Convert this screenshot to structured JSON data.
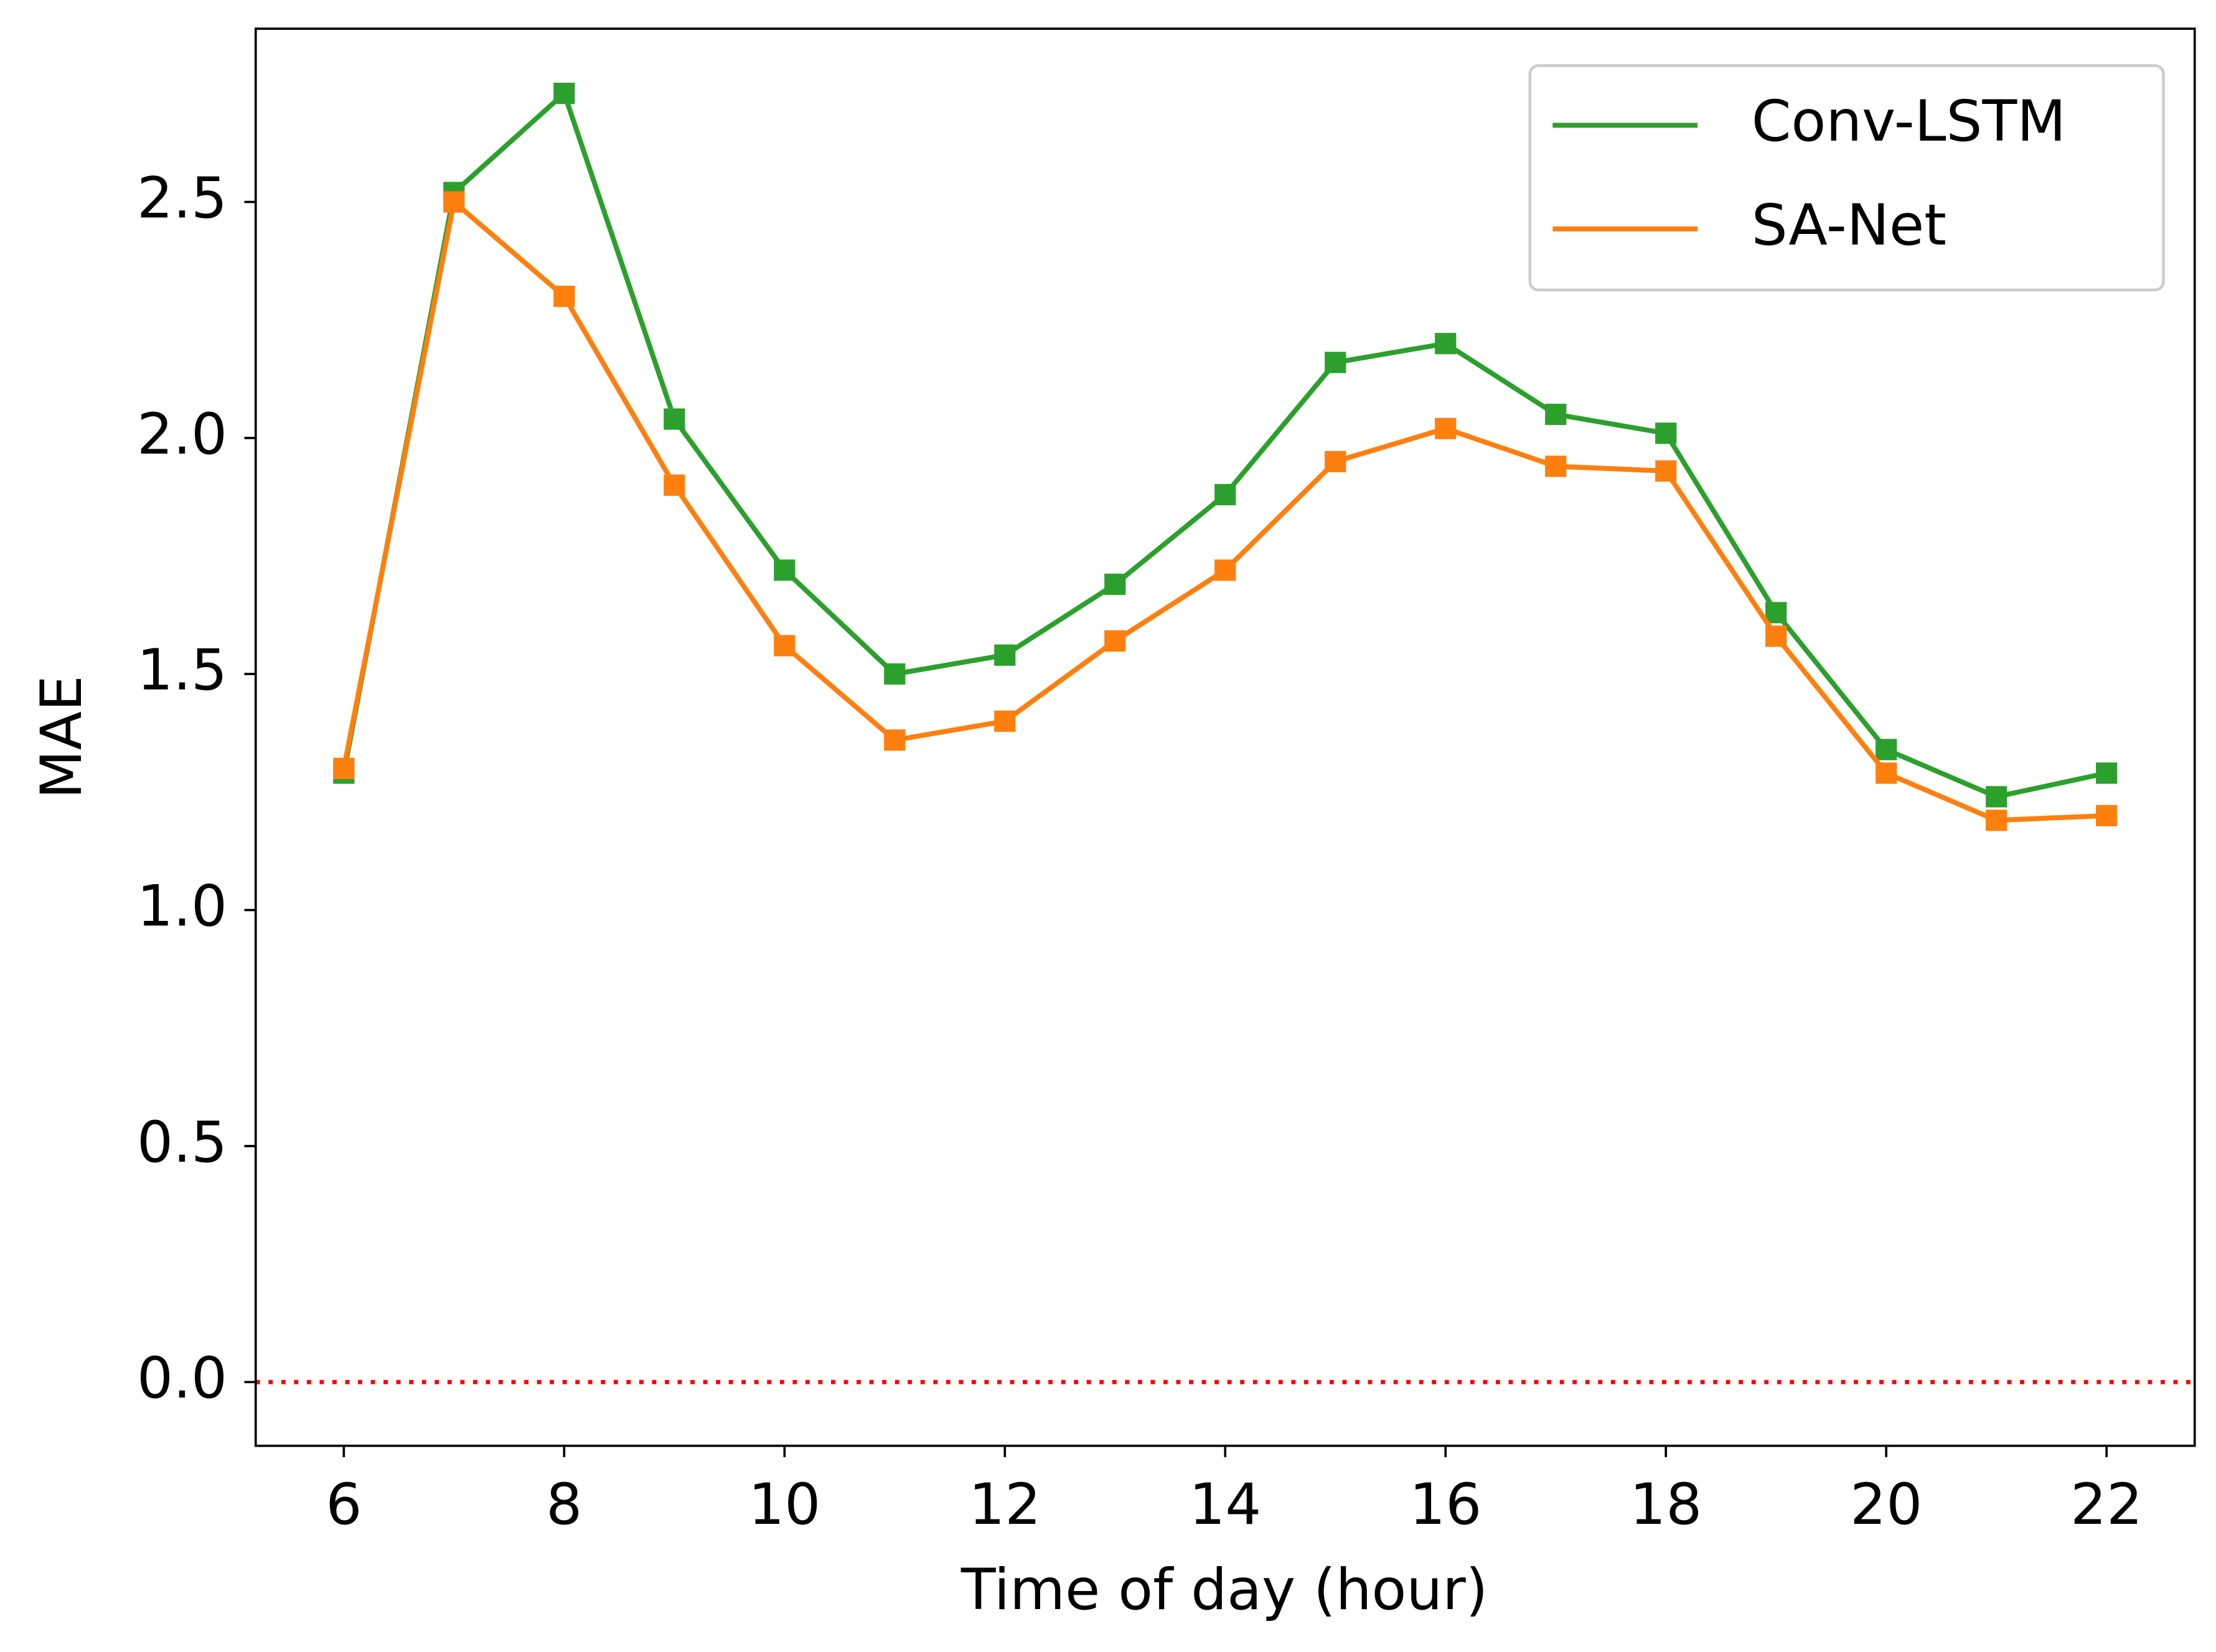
{
  "chart_data": {
    "type": "line",
    "xlabel": "Time of day (hour)",
    "ylabel": "MAE",
    "x": [
      6,
      7,
      8,
      9,
      10,
      11,
      12,
      13,
      14,
      15,
      16,
      17,
      18,
      19,
      20,
      21,
      22
    ],
    "series": [
      {
        "name": "Conv-LSTM",
        "color": "#2ca02c",
        "marker": "square",
        "values": [
          1.29,
          2.52,
          2.73,
          2.04,
          1.72,
          1.5,
          1.54,
          1.69,
          1.88,
          2.16,
          2.2,
          2.05,
          2.01,
          1.63,
          1.34,
          1.24,
          1.29
        ]
      },
      {
        "name": "SA-Net",
        "color": "#ff7f0e",
        "marker": "square",
        "values": [
          1.3,
          2.5,
          2.3,
          1.9,
          1.56,
          1.36,
          1.4,
          1.57,
          1.72,
          1.95,
          2.02,
          1.94,
          1.93,
          1.58,
          1.29,
          1.19,
          1.2
        ]
      }
    ],
    "hline": {
      "value": 0,
      "color": "#ff0000",
      "style": "dotted"
    },
    "xlim": [
      5.2,
      22.8
    ],
    "ylim": [
      -0.135,
      2.867
    ],
    "xticks": [
      6,
      8,
      10,
      12,
      14,
      16,
      18,
      20,
      22
    ],
    "yticks": [
      {
        "value": 0,
        "label": "0.0"
      },
      0.5,
      {
        "value": 1,
        "label": "1.0"
      },
      1.5,
      {
        "value": 2,
        "label": "2.0"
      },
      2.5
    ],
    "legend": "upper right",
    "grid": false
  }
}
